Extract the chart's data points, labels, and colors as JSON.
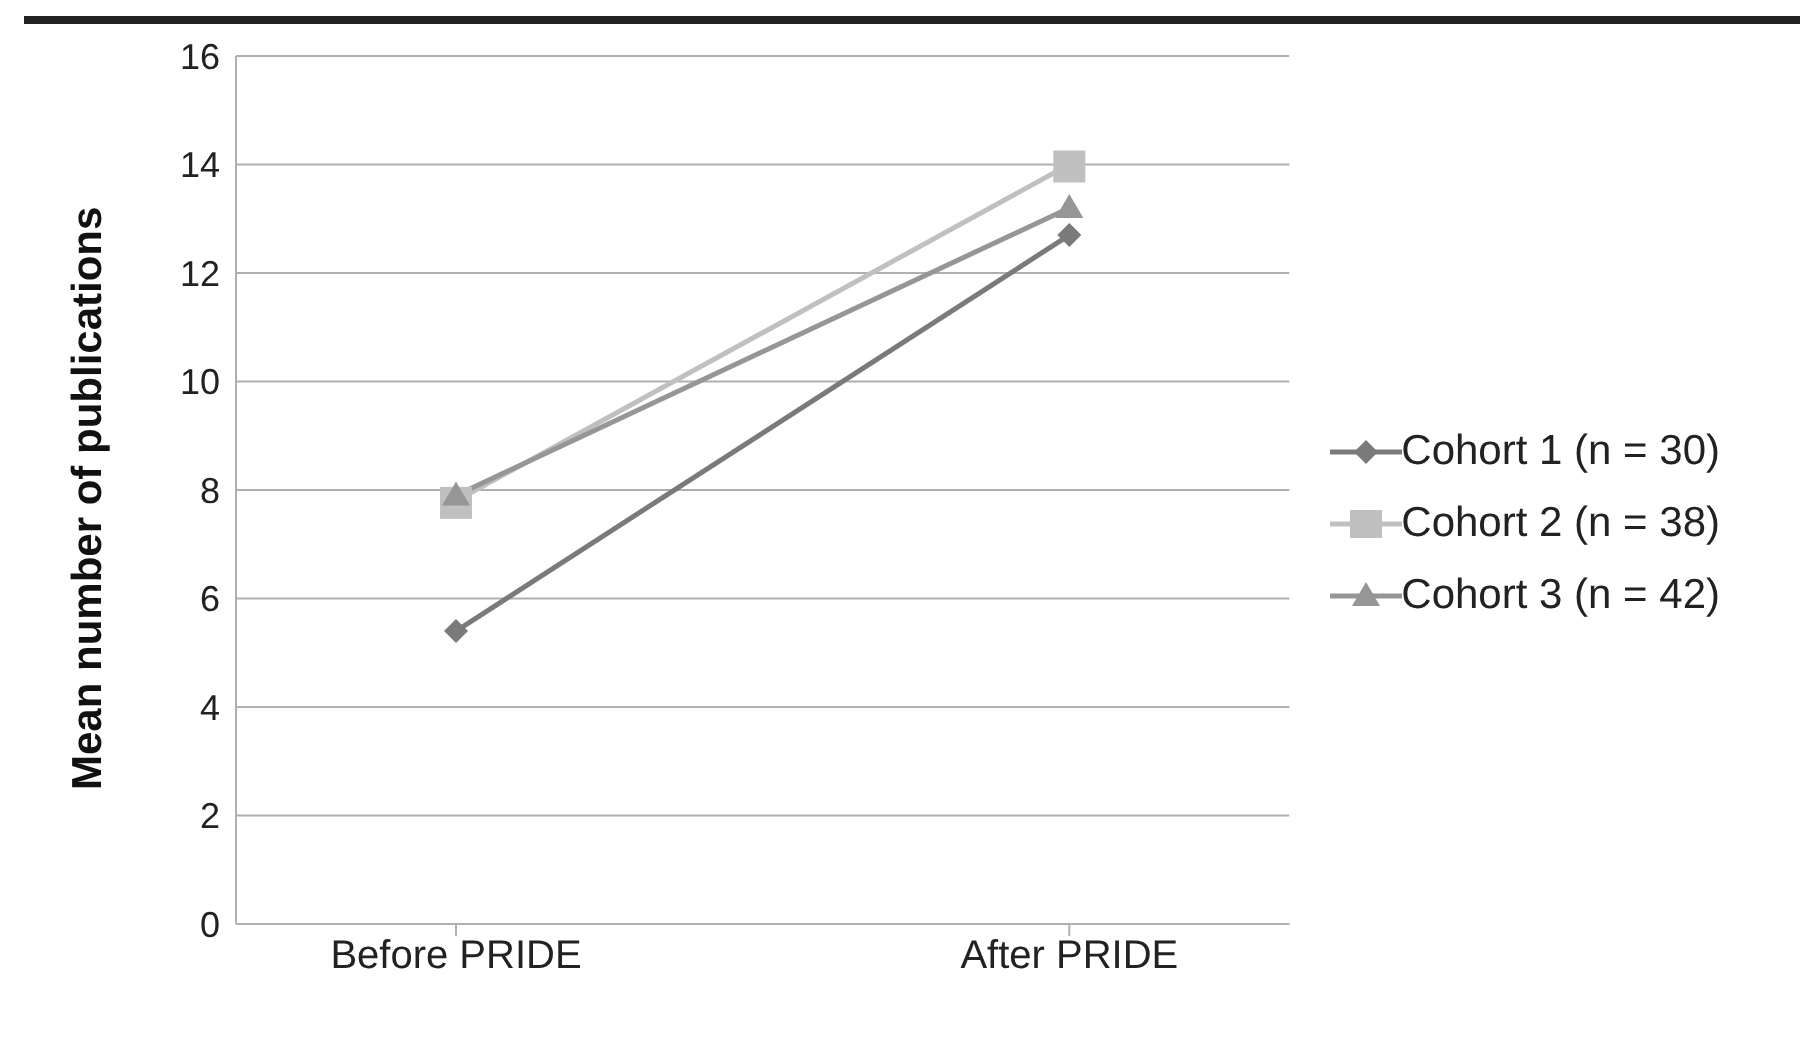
{
  "chart_data": {
    "type": "line",
    "ylabel": "Mean number of publications",
    "categories": [
      "Before PRIDE",
      "After PRIDE"
    ],
    "series": [
      {
        "name": "Cohort 1 (n = 30)",
        "color": "#7a7a7a",
        "values": [
          5.4,
          12.7
        ],
        "marker": "diamond"
      },
      {
        "name": "Cohort 2 (n = 38)",
        "color": "#c0c0c0",
        "values": [
          7.8,
          14.0
        ],
        "marker": "square"
      },
      {
        "name": "Cohort 3 (n = 42)",
        "color": "#969696",
        "values": [
          7.9,
          13.2
        ],
        "marker": "triangle"
      }
    ],
    "ylim": [
      0,
      16
    ],
    "yticks": [
      0,
      2,
      4,
      6,
      8,
      10,
      12,
      14,
      16
    ],
    "grid": "y",
    "legend": "right"
  }
}
